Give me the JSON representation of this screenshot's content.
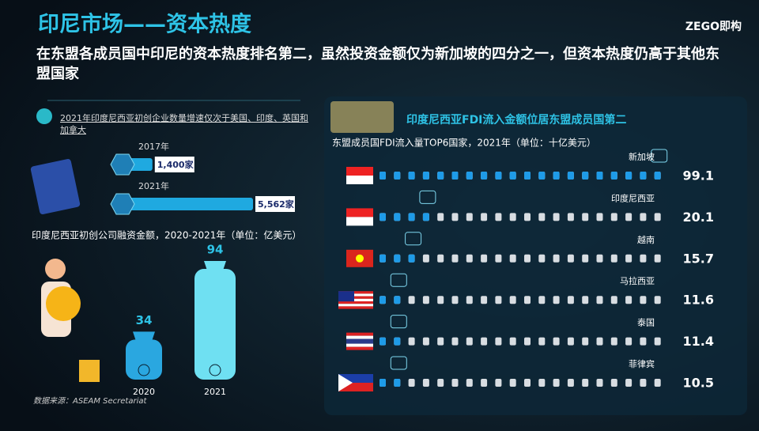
{
  "header": {
    "title": "印尼市场——资本热度",
    "subtitle": "在东盟各成员国中印尼的资本热度排名第二，虽然投资金额仅为新加坡的四分之一，但资本热度仍高于其他东盟国家",
    "logo": "ZEGO即构"
  },
  "source": "数据来源：ASEAM Secretariat",
  "chart_data": [
    {
      "type": "hbar",
      "title": "2021年印度尼西亚初创企业数量增速仅次于美国、印度、英国和加拿大",
      "categories": [
        "2017年",
        "2021年"
      ],
      "values": [
        1400,
        5562
      ],
      "value_labels": [
        "1,400家",
        "5,562家"
      ],
      "color": "#1fa9e0"
    },
    {
      "type": "bag",
      "title": "印度尼西亚初创公司融资金额，2020-2021年（单位：亿美元）",
      "categories": [
        "2020",
        "2021"
      ],
      "values": [
        34,
        94
      ],
      "colors": [
        "#2aa7e0",
        "#6fe0f2"
      ]
    },
    {
      "type": "dots",
      "header": "印度尼西亚FDI流入金额位居东盟成员国第二",
      "title": "东盟成员国FDI流入量TOP6国家，2021年（单位：十亿美元）",
      "categories": [
        "新加坡",
        "印度尼西亚",
        "越南",
        "马拉西亚",
        "泰国",
        "菲律宾"
      ],
      "values": [
        99.1,
        20.1,
        15.7,
        11.6,
        11.4,
        10.5
      ],
      "color": "#1e9be8"
    }
  ]
}
